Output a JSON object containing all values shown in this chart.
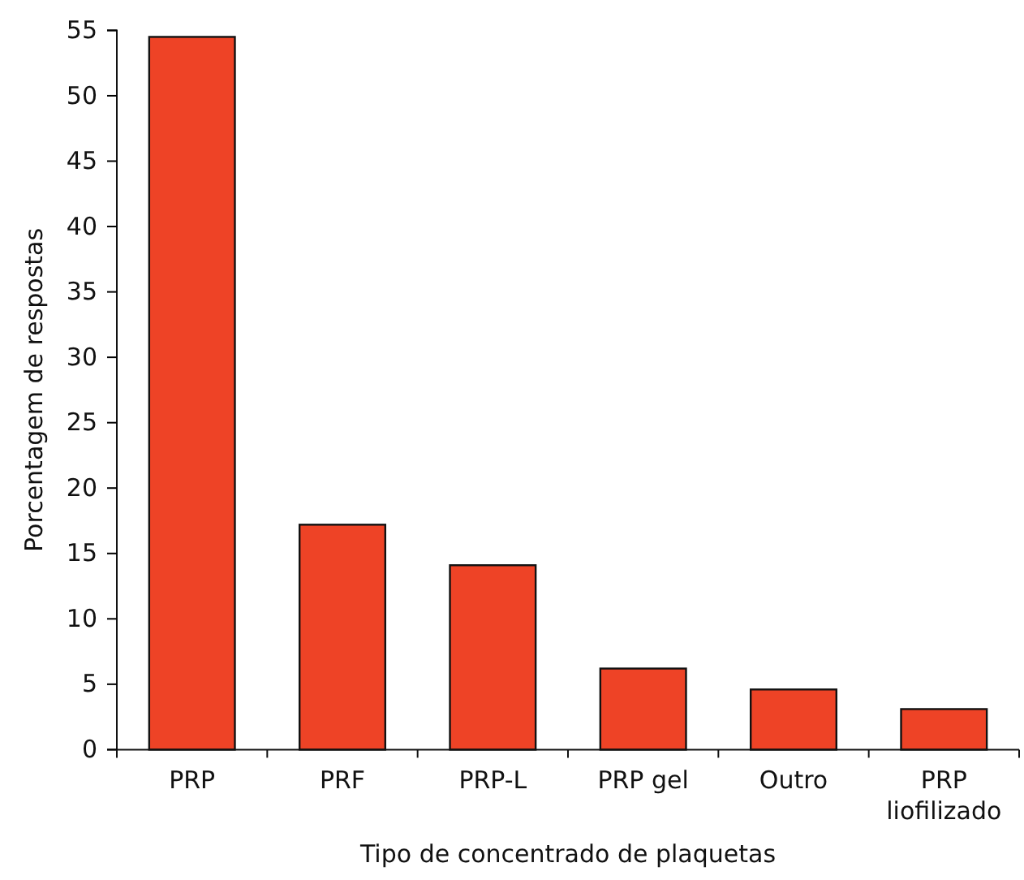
{
  "chart_data": {
    "type": "bar",
    "xlabel": "Tipo de concentrado de plaquetas",
    "ylabel": "Porcentagem de respostas",
    "categories": [
      "PRP",
      "PRF",
      "PRP-L",
      "PRP gel",
      "Outro",
      "PRP liofilizado"
    ],
    "values": [
      54.5,
      17.2,
      14.1,
      6.2,
      4.6,
      3.1
    ],
    "color": "#ee4326",
    "ylim": [
      0,
      55
    ],
    "yticks": [
      0,
      5,
      10,
      15,
      20,
      25,
      30,
      35,
      40,
      45,
      50,
      55
    ],
    "grid": false
  }
}
